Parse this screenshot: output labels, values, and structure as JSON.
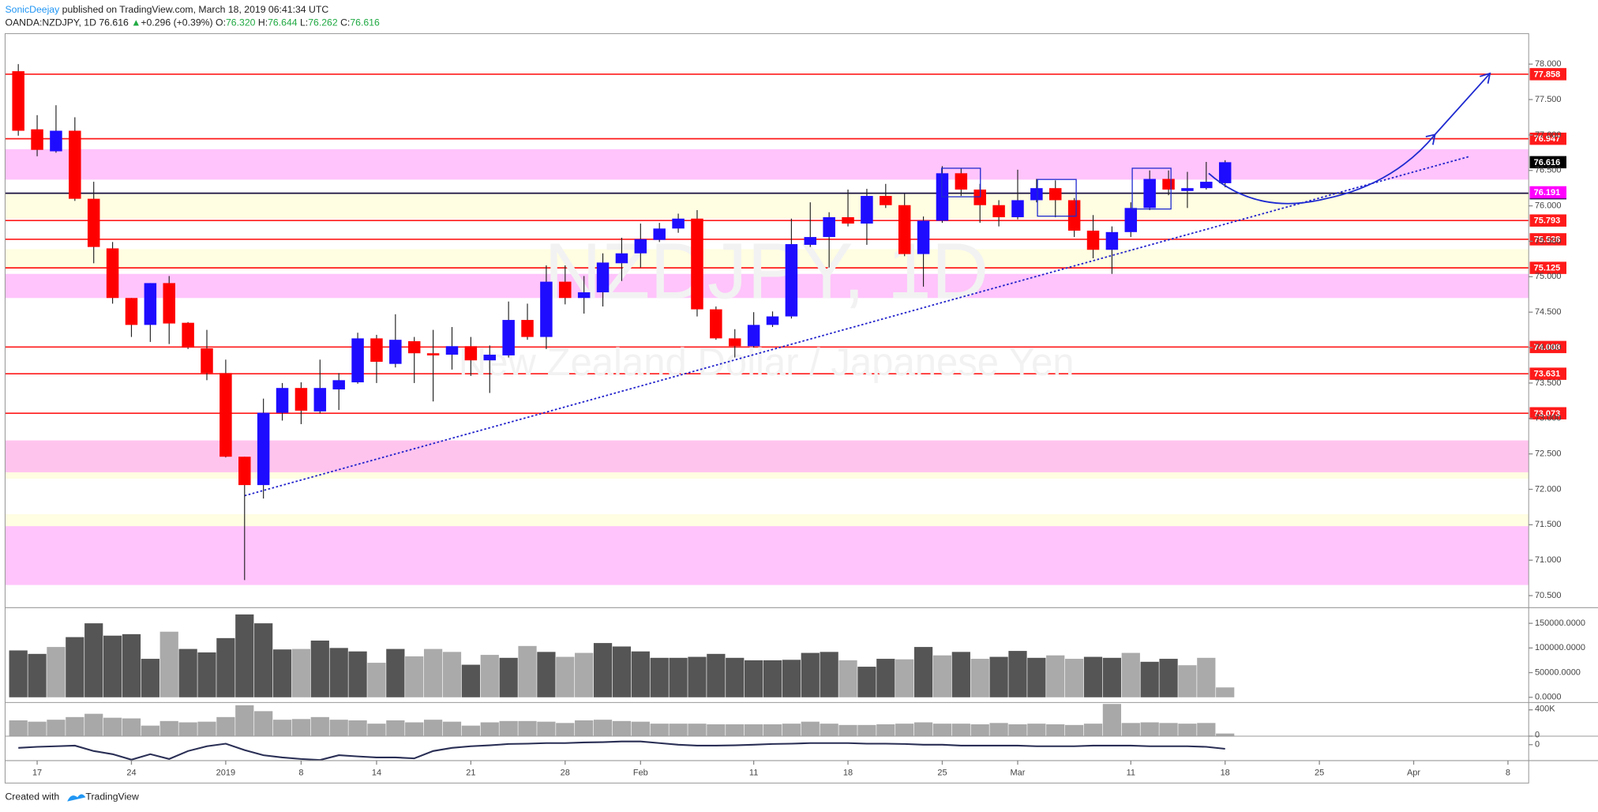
{
  "header": {
    "author": "SonicDeejay",
    "published": "published on TradingView.com, March 18, 2019 06:41:34 UTC",
    "symbol": "OANDA:NZDJPY, 1D",
    "price": "76.616",
    "arrow": "▲",
    "change": "+0.296 (+0.39%)",
    "ohlc": [
      {
        "key": "O:",
        "value": "76.320"
      },
      {
        "key": "H:",
        "value": "76.644"
      },
      {
        "key": "L:",
        "value": "76.262"
      },
      {
        "key": "C:",
        "value": "76.616"
      }
    ]
  },
  "footer": {
    "created": "Created with",
    "brand": "TradingView"
  },
  "chart_data": {
    "type": "candlestick",
    "watermark": {
      "symbol": "NZDJPY, 1D",
      "description": "New Zealand Dollar / Japanese Yen"
    },
    "up_color": "#1e0cff",
    "down_color": "#ff0000",
    "x": [
      0,
      1,
      2,
      3,
      4,
      5,
      6,
      7,
      8,
      9,
      10,
      11,
      12,
      13,
      14,
      15,
      16,
      17,
      18,
      19,
      20,
      21,
      22,
      23,
      24,
      25,
      26,
      27,
      28,
      29,
      30,
      31,
      32,
      33,
      34,
      35,
      36,
      37,
      38,
      39,
      40,
      41,
      42,
      43,
      44,
      45,
      46,
      47,
      48,
      49,
      50,
      51,
      52,
      53,
      54,
      55,
      56,
      57,
      58,
      59,
      60,
      61,
      62,
      63,
      64
    ],
    "open": [
      77.9,
      77.08,
      76.77,
      77.06,
      76.1,
      75.4,
      74.7,
      74.32,
      74.91,
      74.35,
      73.99,
      73.64,
      72.46,
      72.06,
      73.08,
      73.43,
      73.1,
      73.41,
      73.51,
      74.13,
      73.77,
      74.09,
      73.92,
      73.9,
      74.02,
      73.82,
      73.89,
      74.39,
      74.15,
      74.93,
      74.7,
      74.78,
      75.19,
      75.33,
      75.52,
      75.68,
      75.82,
      74.54,
      74.13,
      74.02,
      74.32,
      74.44,
      75.45,
      75.56,
      75.84,
      75.75,
      76.14,
      76.01,
      75.32,
      75.79,
      76.46,
      76.23,
      76.01,
      75.84,
      76.08,
      76.25,
      76.08,
      75.65,
      75.38,
      75.63,
      75.97,
      76.38,
      76.21,
      76.25,
      76.32
    ],
    "high": [
      78.0,
      77.28,
      77.42,
      77.25,
      76.34,
      75.49,
      74.7,
      74.91,
      75.01,
      74.36,
      74.25,
      73.83,
      72.46,
      73.28,
      73.5,
      73.51,
      73.83,
      73.64,
      74.21,
      74.18,
      74.47,
      74.15,
      74.25,
      74.29,
      74.15,
      74.03,
      74.65,
      74.62,
      75.16,
      75.16,
      75.01,
      75.33,
      75.55,
      75.75,
      75.76,
      75.89,
      75.94,
      74.58,
      74.26,
      74.5,
      74.51,
      75.82,
      76.05,
      75.91,
      76.23,
      76.24,
      76.31,
      76.17,
      75.85,
      76.56,
      76.53,
      76.31,
      76.08,
      76.51,
      76.38,
      76.36,
      76.11,
      75.87,
      75.71,
      76.05,
      76.5,
      76.5,
      76.48,
      76.62,
      76.644
    ],
    "low": [
      76.99,
      76.7,
      76.75,
      76.07,
      75.19,
      74.62,
      74.15,
      74.08,
      74.05,
      73.98,
      73.54,
      72.45,
      70.72,
      71.87,
      72.97,
      72.92,
      73.07,
      73.12,
      73.49,
      73.5,
      73.72,
      73.5,
      73.24,
      73.69,
      73.6,
      73.36,
      73.86,
      74.11,
      73.98,
      74.61,
      74.48,
      74.58,
      74.94,
      75.13,
      75.49,
      75.62,
      74.44,
      74.11,
      73.86,
      74.0,
      74.29,
      74.41,
      75.42,
      75.13,
      75.71,
      75.45,
      75.97,
      75.29,
      74.86,
      75.76,
      76.14,
      75.76,
      75.71,
      75.81,
      76.05,
      75.84,
      75.56,
      75.26,
      75.04,
      75.56,
      75.94,
      76.15,
      75.97,
      76.23,
      76.262
    ],
    "close": [
      77.06,
      76.79,
      77.06,
      76.1,
      75.42,
      74.7,
      74.32,
      74.91,
      74.34,
      74.0,
      73.64,
      72.46,
      72.06,
      73.08,
      73.43,
      73.11,
      73.43,
      73.54,
      74.13,
      73.8,
      74.11,
      73.92,
      73.89,
      74.02,
      73.82,
      73.9,
      74.39,
      74.15,
      74.93,
      74.7,
      74.78,
      75.2,
      75.33,
      75.53,
      75.68,
      75.82,
      74.54,
      74.13,
      74.02,
      74.32,
      74.44,
      75.46,
      75.56,
      75.84,
      75.75,
      76.14,
      76.01,
      75.32,
      75.79,
      76.46,
      76.23,
      76.01,
      75.84,
      76.08,
      76.25,
      76.08,
      75.65,
      75.38,
      75.63,
      75.97,
      76.38,
      76.23,
      76.25,
      76.34,
      76.616
    ],
    "xlim": [
      -0.7,
      80.1
    ],
    "xticks": [
      {
        "value": 1,
        "label": "17"
      },
      {
        "value": 6,
        "label": "24"
      },
      {
        "value": 11,
        "label": "2019"
      },
      {
        "value": 15,
        "label": "8"
      },
      {
        "value": 19,
        "label": "14"
      },
      {
        "value": 24,
        "label": "21"
      },
      {
        "value": 29,
        "label": "28"
      },
      {
        "value": 33,
        "label": "Feb"
      },
      {
        "value": 39,
        "label": "11"
      },
      {
        "value": 44,
        "label": "18"
      },
      {
        "value": 49,
        "label": "25"
      },
      {
        "value": 53,
        "label": "Mar"
      },
      {
        "value": 59,
        "label": "11"
      },
      {
        "value": 64,
        "label": "18"
      },
      {
        "value": 69,
        "label": "25"
      },
      {
        "value": 74,
        "label": "Apr"
      },
      {
        "value": 79,
        "label": "8"
      }
    ],
    "ylim": [
      70.33,
      78.43
    ],
    "yticks": [
      {
        "value": 78,
        "label": "78.000"
      },
      {
        "value": 77.5,
        "label": "77.500"
      },
      {
        "value": 77,
        "label": "77.000"
      },
      {
        "value": 76.5,
        "label": "76.500"
      },
      {
        "value": 76,
        "label": "76.000"
      },
      {
        "value": 75.5,
        "label": "75.500"
      },
      {
        "value": 75,
        "label": "75.000"
      },
      {
        "value": 74.5,
        "label": "74.500"
      },
      {
        "value": 74,
        "label": "74.000"
      },
      {
        "value": 73.5,
        "label": "73.500"
      },
      {
        "value": 73,
        "label": "73.000"
      },
      {
        "value": 72.5,
        "label": "72.500"
      },
      {
        "value": 72,
        "label": "72.000"
      },
      {
        "value": 71.5,
        "label": "71.500"
      },
      {
        "value": 71,
        "label": "71.000"
      },
      {
        "value": 70.5,
        "label": "70.500"
      }
    ],
    "zones": [
      {
        "from": 76.8,
        "to": 76.37,
        "color": "#ffc4fb"
      },
      {
        "from": 76.17,
        "to": 75.82,
        "color": "#fffde2"
      },
      {
        "from": 75.39,
        "to": 75.13,
        "color": "#fffde2"
      },
      {
        "from": 75.04,
        "to": 74.7,
        "color": "#ffc4fb"
      },
      {
        "from": 72.69,
        "to": 72.24,
        "color": "#ffc4ee"
      },
      {
        "from": 72.24,
        "to": 72.15,
        "color": "#fffde2"
      },
      {
        "from": 71.65,
        "to": 71.48,
        "color": "#fffde2"
      },
      {
        "from": 71.48,
        "to": 70.65,
        "color": "#ffc4fb"
      }
    ],
    "levels": [
      {
        "value": 77.858,
        "color": "#ff1a1a"
      },
      {
        "value": 76.947,
        "color": "#ff1a1a"
      },
      {
        "value": 76.178,
        "color": "#1a1040"
      },
      {
        "value": 75.793,
        "color": "#ff1a1a"
      },
      {
        "value": 75.528,
        "color": "#ff1a1a"
      },
      {
        "value": 75.125,
        "color": "#ff1a1a"
      },
      {
        "value": 74.008,
        "color": "#ff1a1a"
      },
      {
        "value": 73.631,
        "color": "#ff1a1a"
      },
      {
        "value": 73.073,
        "color": "#ff1a1a"
      }
    ],
    "price_labels": [
      {
        "value": 76.616,
        "color": "#000000"
      },
      {
        "value": 76.191,
        "color": "#ff00ff"
      }
    ],
    "trendline": {
      "x": [
        12,
        77
      ],
      "y": [
        71.91,
        76.7
      ],
      "color": "#2222cc"
    },
    "volume": {
      "values": [
        95000,
        88000,
        102000,
        122000,
        150000,
        125000,
        128000,
        78000,
        133000,
        98000,
        91000,
        120000,
        168000,
        150000,
        97000,
        98000,
        115000,
        100000,
        93000,
        70000,
        98000,
        83000,
        98000,
        92000,
        66000,
        86000,
        80000,
        104000,
        92000,
        82000,
        90000,
        110000,
        103000,
        93000,
        80000,
        80000,
        82000,
        88000,
        80000,
        75000,
        75000,
        76000,
        90000,
        92000,
        75000,
        62000,
        78000,
        77000,
        102000,
        85000,
        92000,
        78000,
        82000,
        94000,
        80000,
        85000,
        78000,
        82000,
        80000,
        90000,
        72000,
        78000,
        65000,
        80000,
        20000
      ],
      "colors": [
        "#555555",
        "#555555",
        "#aaaaaa",
        "#555555",
        "#555555",
        "#555555",
        "#555555",
        "#555555",
        "#aaaaaa",
        "#555555",
        "#555555",
        "#555555",
        "#555555",
        "#555555",
        "#555555",
        "#aaaaaa",
        "#555555",
        "#555555",
        "#555555",
        "#aaaaaa",
        "#555555",
        "#aaaaaa",
        "#aaaaaa",
        "#aaaaaa",
        "#555555",
        "#aaaaaa",
        "#555555",
        "#aaaaaa",
        "#555555",
        "#aaaaaa",
        "#aaaaaa",
        "#555555",
        "#555555",
        "#555555",
        "#555555",
        "#555555",
        "#555555",
        "#555555",
        "#555555",
        "#555555",
        "#555555",
        "#555555",
        "#555555",
        "#555555",
        "#aaaaaa",
        "#555555",
        "#555555",
        "#aaaaaa",
        "#555555",
        "#aaaaaa",
        "#555555",
        "#aaaaaa",
        "#555555",
        "#555555",
        "#555555",
        "#aaaaaa",
        "#aaaaaa",
        "#555555",
        "#555555",
        "#aaaaaa",
        "#555555",
        "#555555",
        "#aaaaaa",
        "#aaaaaa",
        "#aaaaaa"
      ],
      "ylim": [
        -10560,
        181700
      ],
      "yticks": [
        {
          "value": 150000,
          "label": "150000.0000"
        },
        {
          "value": 100000,
          "label": "100000.0000"
        },
        {
          "value": 50000,
          "label": "50000.0000"
        },
        {
          "value": 0,
          "label": "0.0000"
        }
      ]
    },
    "volume2": {
      "values": [
        240000,
        220000,
        250000,
        290000,
        340000,
        280000,
        270000,
        160000,
        230000,
        210000,
        220000,
        290000,
        470000,
        380000,
        250000,
        260000,
        290000,
        250000,
        240000,
        190000,
        240000,
        210000,
        250000,
        220000,
        160000,
        210000,
        230000,
        230000,
        220000,
        200000,
        240000,
        250000,
        230000,
        220000,
        190000,
        190000,
        190000,
        180000,
        180000,
        180000,
        180000,
        190000,
        220000,
        190000,
        170000,
        170000,
        180000,
        190000,
        210000,
        190000,
        190000,
        180000,
        200000,
        180000,
        190000,
        180000,
        170000,
        190000,
        490000,
        200000,
        210000,
        200000,
        190000,
        200000,
        40000
      ],
      "color": "#a8a8a8",
      "ylim": [
        0,
        512000
      ],
      "yticks": [
        {
          "value": 400000,
          "label": "400K"
        },
        0
      ]
    },
    "oscillator": {
      "values": [
        -1,
        -0.7,
        -0.5,
        -0.3,
        -2,
        -3,
        -4.7,
        -3,
        -4.5,
        -2,
        -0.5,
        0.3,
        -1.7,
        -3.3,
        -4,
        -4.5,
        -4.8,
        -3.3,
        -3.7,
        -4,
        -4,
        -4.3,
        -2,
        -1,
        -0.5,
        -0.2,
        0.2,
        0.3,
        0.5,
        0.5,
        0.7,
        0.8,
        1,
        1,
        0.5,
        0,
        -0.3,
        -0.3,
        -0.2,
        0,
        0.2,
        0.3,
        0.5,
        0.5,
        0.5,
        0.3,
        0.3,
        0.2,
        0,
        0,
        -0.3,
        -0.3,
        -0.3,
        -0.3,
        -0.5,
        -0.5,
        -0.5,
        -0.3,
        -0.3,
        -0.3,
        -0.5,
        -0.5,
        -0.5,
        -0.7,
        -1.3
      ],
      "color": "#2a2f55",
      "ylim": [
        -5,
        2.67
      ],
      "yticks": [
        0
      ]
    }
  }
}
